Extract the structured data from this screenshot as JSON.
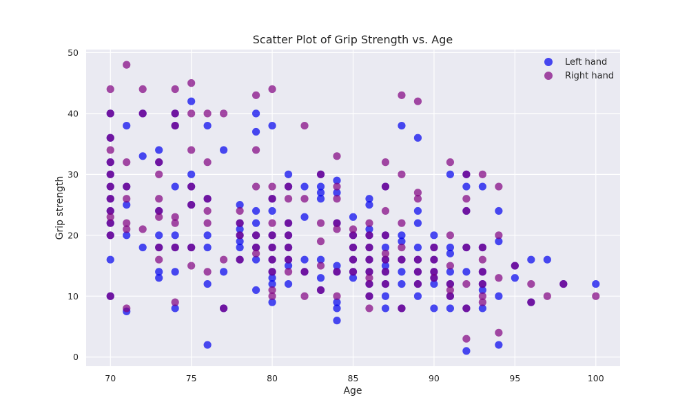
{
  "colors": {
    "plot_background": "#eaeaf2",
    "grid": "#ffffff",
    "left_hand": "#0000ee",
    "right_hand": "#800080"
  },
  "chart_data": {
    "type": "scatter",
    "title": "Scatter Plot of Grip Strength vs. Age",
    "xlabel": "Age",
    "ylabel": "Grip strength",
    "xlim": [
      68.5,
      101.5
    ],
    "ylim": [
      -1.5,
      50.5
    ],
    "xticks": [
      70,
      75,
      80,
      85,
      90,
      95,
      100
    ],
    "yticks": [
      0,
      10,
      20,
      30,
      40,
      50
    ],
    "grid": true,
    "legend_position": "top-right",
    "series": [
      {
        "name": "Left hand",
        "color": "#0000ee",
        "points": [
          [
            70,
            10
          ],
          [
            70,
            16
          ],
          [
            70,
            20
          ],
          [
            70,
            22
          ],
          [
            70,
            24
          ],
          [
            70,
            26
          ],
          [
            70,
            28
          ],
          [
            70,
            30
          ],
          [
            70,
            32
          ],
          [
            70,
            36
          ],
          [
            70,
            40
          ],
          [
            71,
            7.5
          ],
          [
            71,
            20
          ],
          [
            71,
            25
          ],
          [
            71,
            28
          ],
          [
            71,
            38
          ],
          [
            72,
            18
          ],
          [
            72,
            33
          ],
          [
            72,
            40
          ],
          [
            73,
            13
          ],
          [
            73,
            14
          ],
          [
            73,
            18
          ],
          [
            73,
            20
          ],
          [
            73,
            24
          ],
          [
            73,
            32
          ],
          [
            73,
            34
          ],
          [
            74,
            8
          ],
          [
            74,
            14
          ],
          [
            74,
            18
          ],
          [
            74,
            20
          ],
          [
            74,
            28
          ],
          [
            74,
            38
          ],
          [
            74,
            40
          ],
          [
            75,
            18
          ],
          [
            75,
            25
          ],
          [
            75,
            28
          ],
          [
            75,
            30
          ],
          [
            75,
            42
          ],
          [
            76,
            2
          ],
          [
            76,
            12
          ],
          [
            76,
            18
          ],
          [
            76,
            20
          ],
          [
            76,
            26
          ],
          [
            76,
            38
          ],
          [
            77,
            8
          ],
          [
            77,
            14
          ],
          [
            77,
            34
          ],
          [
            78,
            16
          ],
          [
            78,
            18
          ],
          [
            78,
            19
          ],
          [
            78,
            20
          ],
          [
            78,
            21
          ],
          [
            78,
            22
          ],
          [
            78,
            25
          ],
          [
            79,
            11
          ],
          [
            79,
            16
          ],
          [
            79,
            18
          ],
          [
            79,
            20
          ],
          [
            79,
            22
          ],
          [
            79,
            24
          ],
          [
            79,
            37
          ],
          [
            79,
            40
          ],
          [
            80,
            9
          ],
          [
            80,
            12
          ],
          [
            80,
            13
          ],
          [
            80,
            14
          ],
          [
            80,
            16
          ],
          [
            80,
            18
          ],
          [
            80,
            20
          ],
          [
            80,
            24
          ],
          [
            80,
            26
          ],
          [
            80,
            38
          ],
          [
            81,
            12
          ],
          [
            81,
            15
          ],
          [
            81,
            16
          ],
          [
            81,
            18
          ],
          [
            81,
            20
          ],
          [
            81,
            22
          ],
          [
            81,
            28
          ],
          [
            81,
            30
          ],
          [
            82,
            14
          ],
          [
            82,
            16
          ],
          [
            82,
            23
          ],
          [
            82,
            28
          ],
          [
            83,
            11
          ],
          [
            83,
            13
          ],
          [
            83,
            16
          ],
          [
            83,
            26
          ],
          [
            83,
            27
          ],
          [
            83,
            28
          ],
          [
            83,
            30
          ],
          [
            84,
            6
          ],
          [
            84,
            8
          ],
          [
            84,
            9
          ],
          [
            84,
            14
          ],
          [
            84,
            15
          ],
          [
            84,
            22
          ],
          [
            84,
            27
          ],
          [
            84,
            29
          ],
          [
            85,
            13
          ],
          [
            85,
            14
          ],
          [
            85,
            16
          ],
          [
            85,
            18
          ],
          [
            85,
            20
          ],
          [
            85,
            23
          ],
          [
            86,
            10
          ],
          [
            86,
            12
          ],
          [
            86,
            14
          ],
          [
            86,
            16
          ],
          [
            86,
            18
          ],
          [
            86,
            20
          ],
          [
            86,
            21
          ],
          [
            86,
            25
          ],
          [
            86,
            26
          ],
          [
            87,
            8
          ],
          [
            87,
            10
          ],
          [
            87,
            12
          ],
          [
            87,
            14
          ],
          [
            87,
            15
          ],
          [
            87,
            16
          ],
          [
            87,
            18
          ],
          [
            87,
            20
          ],
          [
            87,
            28
          ],
          [
            88,
            8
          ],
          [
            88,
            12
          ],
          [
            88,
            14
          ],
          [
            88,
            16
          ],
          [
            88,
            19
          ],
          [
            88,
            20
          ],
          [
            88,
            38
          ],
          [
            89,
            10
          ],
          [
            89,
            12
          ],
          [
            89,
            14
          ],
          [
            89,
            16
          ],
          [
            89,
            18
          ],
          [
            89,
            22
          ],
          [
            89,
            24
          ],
          [
            89,
            36
          ],
          [
            90,
            8
          ],
          [
            90,
            12
          ],
          [
            90,
            13
          ],
          [
            90,
            14
          ],
          [
            90,
            16
          ],
          [
            90,
            18
          ],
          [
            90,
            20
          ],
          [
            91,
            8
          ],
          [
            91,
            10
          ],
          [
            91,
            12
          ],
          [
            91,
            14
          ],
          [
            91,
            17
          ],
          [
            91,
            18
          ],
          [
            91,
            30
          ],
          [
            92,
            1
          ],
          [
            92,
            8
          ],
          [
            92,
            14
          ],
          [
            92,
            18
          ],
          [
            92,
            24
          ],
          [
            92,
            28
          ],
          [
            92,
            30
          ],
          [
            93,
            8
          ],
          [
            93,
            11
          ],
          [
            93,
            12
          ],
          [
            93,
            14
          ],
          [
            93,
            18
          ],
          [
            93,
            28
          ],
          [
            94,
            2
          ],
          [
            94,
            10
          ],
          [
            94,
            19
          ],
          [
            94,
            24
          ],
          [
            95,
            13
          ],
          [
            95,
            15
          ],
          [
            96,
            9
          ],
          [
            96,
            16
          ],
          [
            97,
            16
          ],
          [
            98,
            12
          ],
          [
            100,
            12
          ]
        ]
      },
      {
        "name": "Right hand",
        "color": "#800080",
        "points": [
          [
            70,
            10
          ],
          [
            70,
            20
          ],
          [
            70,
            22
          ],
          [
            70,
            23
          ],
          [
            70,
            24
          ],
          [
            70,
            26
          ],
          [
            70,
            28
          ],
          [
            70,
            30
          ],
          [
            70,
            32
          ],
          [
            70,
            34
          ],
          [
            70,
            36
          ],
          [
            70,
            40
          ],
          [
            70,
            44
          ],
          [
            71,
            8
          ],
          [
            71,
            21
          ],
          [
            71,
            22
          ],
          [
            71,
            26
          ],
          [
            71,
            28
          ],
          [
            71,
            32
          ],
          [
            71,
            48
          ],
          [
            72,
            21
          ],
          [
            72,
            40
          ],
          [
            72,
            44
          ],
          [
            73,
            16
          ],
          [
            73,
            18
          ],
          [
            73,
            23
          ],
          [
            73,
            24
          ],
          [
            73,
            26
          ],
          [
            73,
            30
          ],
          [
            73,
            32
          ],
          [
            74,
            9
          ],
          [
            74,
            18
          ],
          [
            74,
            22
          ],
          [
            74,
            23
          ],
          [
            74,
            38
          ],
          [
            74,
            40
          ],
          [
            74,
            44
          ],
          [
            75,
            15
          ],
          [
            75,
            18
          ],
          [
            75,
            25
          ],
          [
            75,
            28
          ],
          [
            75,
            34
          ],
          [
            75,
            40
          ],
          [
            75,
            45
          ],
          [
            76,
            14
          ],
          [
            76,
            22
          ],
          [
            76,
            24
          ],
          [
            76,
            26
          ],
          [
            76,
            32
          ],
          [
            76,
            40
          ],
          [
            77,
            8
          ],
          [
            77,
            16
          ],
          [
            77,
            40
          ],
          [
            78,
            16
          ],
          [
            78,
            20
          ],
          [
            78,
            22
          ],
          [
            78,
            24
          ],
          [
            79,
            17
          ],
          [
            79,
            18
          ],
          [
            79,
            20
          ],
          [
            79,
            28
          ],
          [
            79,
            34
          ],
          [
            79,
            43
          ],
          [
            80,
            10
          ],
          [
            80,
            11
          ],
          [
            80,
            14
          ],
          [
            80,
            16
          ],
          [
            80,
            18
          ],
          [
            80,
            20
          ],
          [
            80,
            22
          ],
          [
            80,
            26
          ],
          [
            80,
            28
          ],
          [
            80,
            44
          ],
          [
            81,
            14
          ],
          [
            81,
            16
          ],
          [
            81,
            18
          ],
          [
            81,
            20
          ],
          [
            81,
            22
          ],
          [
            81,
            26
          ],
          [
            81,
            28
          ],
          [
            82,
            10
          ],
          [
            82,
            14
          ],
          [
            82,
            26
          ],
          [
            82,
            38
          ],
          [
            83,
            11
          ],
          [
            83,
            15
          ],
          [
            83,
            19
          ],
          [
            83,
            22
          ],
          [
            83,
            30
          ],
          [
            84,
            10
          ],
          [
            84,
            14
          ],
          [
            84,
            21
          ],
          [
            84,
            22
          ],
          [
            84,
            26
          ],
          [
            84,
            28
          ],
          [
            84,
            33
          ],
          [
            85,
            14
          ],
          [
            85,
            16
          ],
          [
            85,
            18
          ],
          [
            85,
            20
          ],
          [
            85,
            21
          ],
          [
            86,
            8
          ],
          [
            86,
            10
          ],
          [
            86,
            12
          ],
          [
            86,
            13
          ],
          [
            86,
            14
          ],
          [
            86,
            16
          ],
          [
            86,
            18
          ],
          [
            86,
            20
          ],
          [
            86,
            22
          ],
          [
            87,
            12
          ],
          [
            87,
            14
          ],
          [
            87,
            16
          ],
          [
            87,
            17
          ],
          [
            87,
            20
          ],
          [
            87,
            24
          ],
          [
            87,
            28
          ],
          [
            87,
            32
          ],
          [
            88,
            8
          ],
          [
            88,
            16
          ],
          [
            88,
            18
          ],
          [
            88,
            22
          ],
          [
            88,
            30
          ],
          [
            88,
            43
          ],
          [
            89,
            12
          ],
          [
            89,
            14
          ],
          [
            89,
            16
          ],
          [
            89,
            26
          ],
          [
            89,
            27
          ],
          [
            89,
            42
          ],
          [
            90,
            13
          ],
          [
            90,
            14
          ],
          [
            90,
            16
          ],
          [
            90,
            18
          ],
          [
            91,
            10
          ],
          [
            91,
            11
          ],
          [
            91,
            12
          ],
          [
            91,
            15
          ],
          [
            91,
            20
          ],
          [
            91,
            32
          ],
          [
            92,
            3
          ],
          [
            92,
            8
          ],
          [
            92,
            12
          ],
          [
            92,
            18
          ],
          [
            92,
            24
          ],
          [
            92,
            26
          ],
          [
            92,
            30
          ],
          [
            93,
            9
          ],
          [
            93,
            10
          ],
          [
            93,
            12
          ],
          [
            93,
            14
          ],
          [
            93,
            16
          ],
          [
            93,
            18
          ],
          [
            93,
            30
          ],
          [
            94,
            4
          ],
          [
            94,
            13
          ],
          [
            94,
            20
          ],
          [
            94,
            28
          ],
          [
            95,
            15
          ],
          [
            96,
            9
          ],
          [
            96,
            12
          ],
          [
            97,
            10
          ],
          [
            98,
            12
          ],
          [
            100,
            10
          ]
        ]
      }
    ]
  }
}
